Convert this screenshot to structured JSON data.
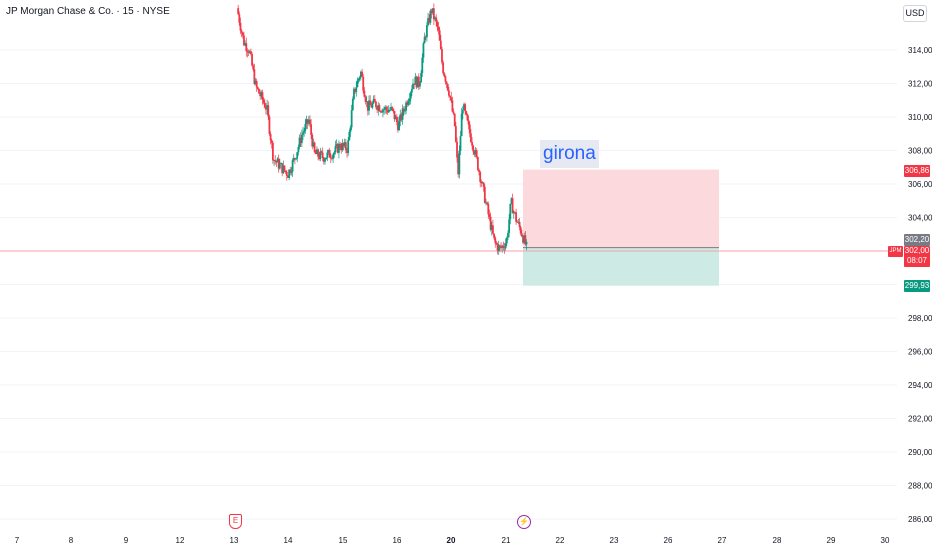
{
  "header": {
    "symbol_title": "JP Morgan Chase & Co. · 15 · NYSE",
    "currency": "USD"
  },
  "colors": {
    "up": "#089981",
    "down": "#f23645",
    "stop_zone": "#fbd9dc",
    "target_zone": "#cdeae4",
    "entry_line": "#787b86",
    "grid": "#f0f3fa",
    "text_label": "#2962ff"
  },
  "price_axis": {
    "ticks": [
      "314,00",
      "312,00",
      "310,00",
      "308,00",
      "306,00",
      "304,00",
      "298,00",
      "296,00",
      "294,00",
      "292,00",
      "290,00",
      "288,00",
      "286,00"
    ]
  },
  "time_axis": {
    "ticks": [
      "7",
      "8",
      "9",
      "12",
      "13",
      "14",
      "15",
      "16",
      "20",
      "21",
      "22",
      "23",
      "26",
      "27",
      "28",
      "29",
      "30"
    ]
  },
  "position_tool": {
    "label": "girona",
    "stop_price": "306,86",
    "entry_price": "302,20",
    "target_price": "299,93"
  },
  "last_price": {
    "value": "302,00",
    "countdown": "08:07",
    "symbol_flag": "JPM"
  },
  "events": {
    "earnings_icon": "E",
    "dividend_icon": "⚡"
  },
  "chart_data": {
    "type": "candlestick",
    "symbol": "JP Morgan Chase & Co.",
    "interval": "15",
    "exchange": "NYSE",
    "currency": "USD",
    "y_range": [
      285,
      316.5
    ],
    "grid": true,
    "close_path": [
      [
        0.0,
        316.5
      ],
      [
        0.06,
        314.5
      ],
      [
        0.11,
        314.0
      ],
      [
        0.17,
        311.8
      ],
      [
        0.21,
        311.3
      ],
      [
        0.27,
        310.5
      ],
      [
        0.33,
        307.5
      ],
      [
        0.4,
        307.0
      ],
      [
        0.46,
        306.6
      ],
      [
        0.52,
        307.5
      ],
      [
        0.59,
        309.0
      ],
      [
        0.65,
        309.8
      ],
      [
        0.7,
        307.8
      ],
      [
        0.78,
        307.6
      ],
      [
        0.88,
        307.9
      ],
      [
        0.93,
        308.3
      ],
      [
        1.0,
        308.1
      ],
      [
        1.06,
        311.5
      ],
      [
        1.12,
        312.7
      ],
      [
        1.18,
        310.6
      ],
      [
        1.25,
        310.8
      ],
      [
        1.32,
        310.5
      ],
      [
        1.4,
        310.4
      ],
      [
        1.46,
        309.5
      ],
      [
        1.53,
        310.8
      ],
      [
        1.6,
        312.2
      ],
      [
        1.65,
        312.0
      ],
      [
        1.7,
        314.8
      ],
      [
        1.76,
        316.4
      ],
      [
        1.82,
        315.2
      ],
      [
        1.86,
        313.0
      ],
      [
        1.92,
        311.5
      ],
      [
        1.97,
        309.5
      ],
      [
        2.0,
        306.5
      ],
      [
        2.04,
        310.8
      ],
      [
        2.1,
        309.2
      ],
      [
        2.15,
        308.0
      ],
      [
        2.21,
        306.2
      ],
      [
        2.28,
        304.0
      ],
      [
        2.33,
        302.5
      ],
      [
        2.38,
        302.1
      ],
      [
        2.44,
        302.6
      ],
      [
        2.48,
        304.9
      ],
      [
        2.53,
        303.8
      ],
      [
        2.57,
        303.2
      ],
      [
        2.62,
        302.2
      ]
    ],
    "annotations": [
      "girona"
    ],
    "events": [
      {
        "date": "13",
        "type": "earnings"
      },
      {
        "date": "21",
        "type": "dividend"
      }
    ]
  }
}
